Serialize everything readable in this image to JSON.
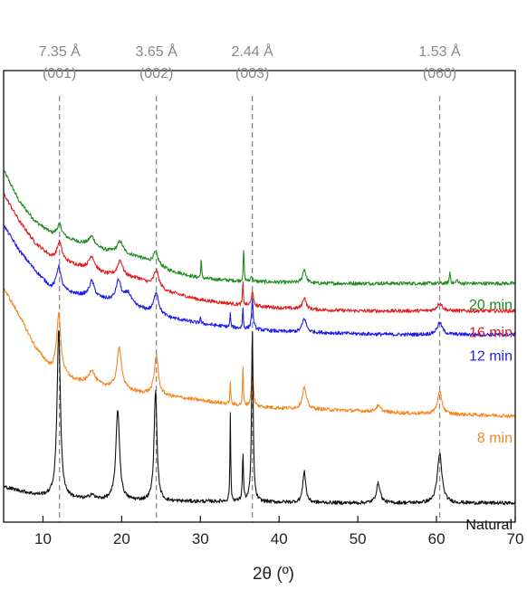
{
  "chart_data": {
    "type": "line",
    "title": "",
    "xlabel": "2θ (º)",
    "ylabel": "",
    "xlim": [
      5,
      70
    ],
    "xticks": [
      10,
      20,
      30,
      40,
      50,
      60,
      70
    ],
    "y_axis_shown": false,
    "grid": false,
    "legend": "none",
    "reference_lines": [
      {
        "x": 12.1,
        "label_top": "7.35 Å",
        "label_bottom": "(001)"
      },
      {
        "x": 24.4,
        "label_top": "3.65 Å",
        "label_bottom": "(002)"
      },
      {
        "x": 36.6,
        "label_top": "2.44 Å",
        "label_bottom": "(003)"
      },
      {
        "x": 60.4,
        "label_top": "1.53 Å",
        "label_bottom": "(060)"
      }
    ],
    "series": [
      {
        "name": "20 min",
        "color": "#1e8c1e",
        "background": [
          [
            5,
            8.6
          ],
          [
            7,
            7.8
          ],
          [
            9,
            7.3
          ],
          [
            11,
            7.0
          ],
          [
            14,
            6.8
          ],
          [
            18,
            6.55
          ],
          [
            22,
            6.4
          ],
          [
            26,
            6.05
          ],
          [
            30,
            5.85
          ],
          [
            35,
            5.78
          ],
          [
            40,
            5.75
          ],
          [
            45,
            5.72
          ],
          [
            50,
            5.72
          ],
          [
            55,
            5.72
          ],
          [
            60,
            5.72
          ],
          [
            65,
            5.72
          ],
          [
            70,
            5.72
          ]
        ],
        "peaks": [
          [
            12.1,
            0.3,
            0.35
          ],
          [
            16.2,
            0.25,
            0.45
          ],
          [
            19.8,
            0.3,
            0.45
          ],
          [
            24.3,
            0.3,
            0.4
          ],
          [
            30.1,
            0.5,
            0.06
          ],
          [
            35.5,
            0.85,
            0.06
          ],
          [
            36.5,
            0.15,
            0.12
          ],
          [
            43.2,
            0.35,
            0.25
          ],
          [
            61.7,
            0.3,
            0.08
          ],
          [
            62.6,
            0.12,
            0.08
          ]
        ]
      },
      {
        "name": "16 min",
        "color": "#e11e1e",
        "background": [
          [
            5,
            8.0
          ],
          [
            7,
            7.3
          ],
          [
            9,
            6.75
          ],
          [
            11,
            6.4
          ],
          [
            14,
            6.2
          ],
          [
            18,
            5.95
          ],
          [
            22,
            5.85
          ],
          [
            26,
            5.5
          ],
          [
            30,
            5.3
          ],
          [
            35,
            5.18
          ],
          [
            40,
            5.1
          ],
          [
            45,
            5.05
          ],
          [
            50,
            5.02
          ],
          [
            55,
            5.02
          ],
          [
            60,
            5.02
          ],
          [
            65,
            5.02
          ],
          [
            70,
            5.02
          ]
        ],
        "peaks": [
          [
            12.1,
            0.45,
            0.35
          ],
          [
            16.2,
            0.35,
            0.45
          ],
          [
            19.8,
            0.4,
            0.4
          ],
          [
            24.4,
            0.42,
            0.35
          ],
          [
            35.4,
            0.6,
            0.06
          ],
          [
            36.6,
            0.4,
            0.12
          ],
          [
            43.2,
            0.3,
            0.25
          ],
          [
            60.4,
            0.2,
            0.4
          ]
        ]
      },
      {
        "name": "12 min",
        "color": "#1e1ee6",
        "background": [
          [
            5,
            7.2
          ],
          [
            7,
            6.55
          ],
          [
            9,
            6.05
          ],
          [
            11,
            5.6
          ],
          [
            14,
            5.45
          ],
          [
            18,
            5.3
          ],
          [
            22,
            5.1
          ],
          [
            26,
            4.85
          ],
          [
            30,
            4.7
          ],
          [
            35,
            4.58
          ],
          [
            40,
            4.5
          ],
          [
            45,
            4.47
          ],
          [
            50,
            4.44
          ],
          [
            55,
            4.42
          ],
          [
            60,
            4.42
          ],
          [
            65,
            4.42
          ],
          [
            70,
            4.42
          ]
        ],
        "peaks": [
          [
            12.0,
            0.6,
            0.35
          ],
          [
            16.2,
            0.4,
            0.4
          ],
          [
            19.6,
            0.55,
            0.4
          ],
          [
            20.8,
            0.3,
            0.5
          ],
          [
            24.4,
            0.55,
            0.35
          ],
          [
            30.0,
            0.2,
            0.06
          ],
          [
            33.8,
            0.35,
            0.06
          ],
          [
            35.4,
            0.55,
            0.06
          ],
          [
            36.6,
            0.75,
            0.12
          ],
          [
            43.2,
            0.35,
            0.3
          ],
          [
            60.4,
            0.3,
            0.4
          ]
        ]
      },
      {
        "name": "8 min",
        "color": "#f5871f",
        "background": [
          [
            5,
            5.6
          ],
          [
            7,
            4.9
          ],
          [
            9,
            4.1
          ],
          [
            11,
            3.55
          ],
          [
            14,
            3.25
          ],
          [
            18,
            3.1
          ],
          [
            22,
            2.95
          ],
          [
            26,
            2.85
          ],
          [
            30,
            2.75
          ],
          [
            35,
            2.62
          ],
          [
            40,
            2.55
          ],
          [
            45,
            2.52
          ],
          [
            50,
            2.48
          ],
          [
            55,
            2.43
          ],
          [
            60,
            2.4
          ],
          [
            65,
            2.38
          ],
          [
            70,
            2.35
          ]
        ],
        "peaks": [
          [
            12.0,
            1.5,
            0.32
          ],
          [
            16.2,
            0.35,
            0.45
          ],
          [
            19.7,
            1.05,
            0.35
          ],
          [
            24.4,
            1.0,
            0.3
          ],
          [
            33.8,
            0.6,
            0.06
          ],
          [
            35.4,
            1.05,
            0.06
          ],
          [
            36.6,
            1.2,
            0.12
          ],
          [
            43.2,
            0.55,
            0.3
          ],
          [
            52.6,
            0.15,
            0.4
          ],
          [
            60.4,
            0.55,
            0.35
          ]
        ]
      },
      {
        "name": "Natural",
        "color": "#111111",
        "background": [
          [
            5,
            0.55
          ],
          [
            7,
            0.45
          ],
          [
            9,
            0.35
          ],
          [
            11,
            0.3
          ],
          [
            14,
            0.25
          ],
          [
            18,
            0.22
          ],
          [
            22,
            0.2
          ],
          [
            26,
            0.18
          ],
          [
            30,
            0.18
          ],
          [
            35,
            0.18
          ],
          [
            40,
            0.16
          ],
          [
            45,
            0.15
          ],
          [
            50,
            0.14
          ],
          [
            55,
            0.14
          ],
          [
            60,
            0.14
          ],
          [
            65,
            0.14
          ],
          [
            70,
            0.14
          ]
        ],
        "peaks": [
          [
            12.0,
            4.3,
            0.25
          ],
          [
            16.2,
            0.12,
            0.3
          ],
          [
            19.5,
            2.3,
            0.28
          ],
          [
            24.3,
            2.8,
            0.22
          ],
          [
            33.8,
            2.2,
            0.06
          ],
          [
            35.4,
            1.2,
            0.08
          ],
          [
            36.6,
            4.4,
            0.12
          ],
          [
            43.2,
            0.8,
            0.22
          ],
          [
            52.6,
            0.5,
            0.3
          ],
          [
            60.4,
            1.25,
            0.35
          ]
        ]
      }
    ]
  }
}
